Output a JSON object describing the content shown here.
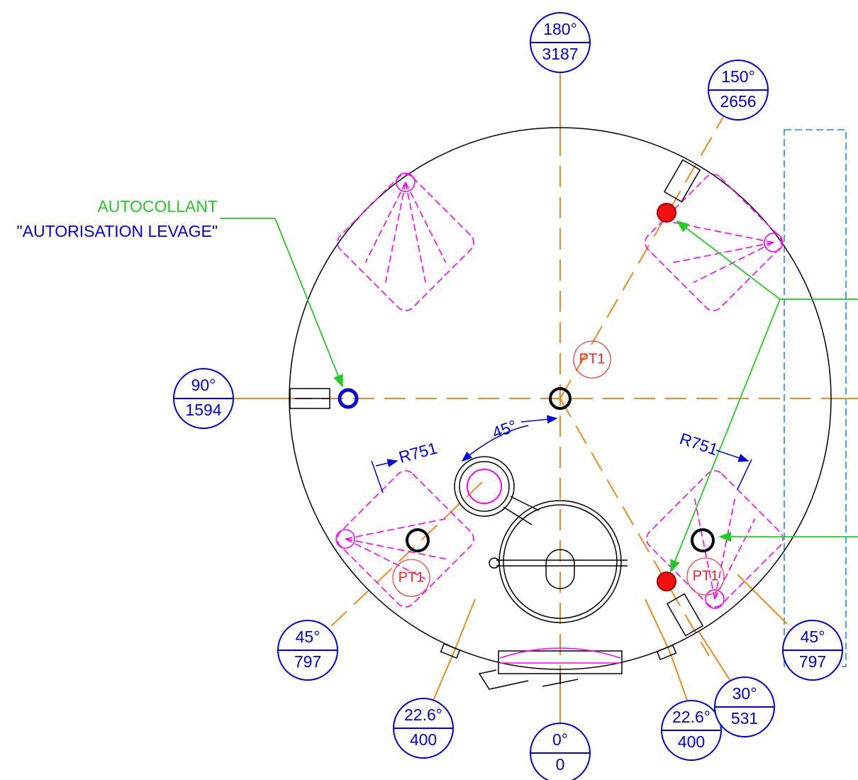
{
  "note": {
    "line1": "AUTOCOLLANT",
    "line2": "\"AUTORISATION LEVAGE\""
  },
  "balloons": [
    {
      "angle": "180°",
      "dist": "3187"
    },
    {
      "angle": "150°",
      "dist": "2656"
    },
    {
      "angle": "90°",
      "dist": "1594"
    },
    {
      "angle": "45°",
      "dist": "797"
    },
    {
      "angle": "45°",
      "dist": "797"
    },
    {
      "angle": "22.6°",
      "dist": "400"
    },
    {
      "angle": "0°",
      "dist": "0"
    },
    {
      "angle": "22.6°",
      "dist": "400"
    },
    {
      "angle": "30°",
      "dist": "531"
    }
  ],
  "markers": [
    "PT1",
    "PT1",
    "PT1"
  ],
  "dimensions": {
    "radius_left": "R751",
    "radius_right": "R751",
    "angle": "45°"
  }
}
